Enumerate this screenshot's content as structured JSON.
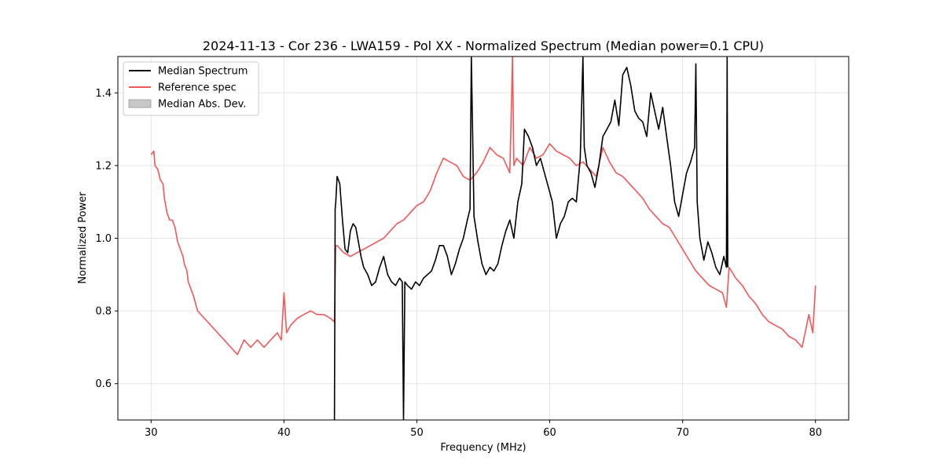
{
  "chart_data": {
    "type": "line",
    "title": "2024-11-13 - Cor 236 - LWA159 - Pol XX - Normalized Spectrum (Median power=0.1 CPU)",
    "xlabel": "Frequency (MHz)",
    "ylabel": "Normalized Power",
    "xlim": [
      27.5,
      82.5
    ],
    "ylim": [
      0.5,
      1.5
    ],
    "xticks": [
      30,
      40,
      50,
      60,
      70,
      80
    ],
    "yticks": [
      0.6,
      0.8,
      1.0,
      1.2,
      1.4
    ],
    "xtick_labels": [
      "30",
      "40",
      "50",
      "60",
      "70",
      "80"
    ],
    "ytick_labels": [
      "0.6",
      "0.8",
      "1.0",
      "1.2",
      "1.4"
    ],
    "grid": true,
    "legend_position": "top-left",
    "legend": [
      {
        "label": "Median Spectrum",
        "color": "#000000",
        "kind": "line"
      },
      {
        "label": "Reference spec",
        "color": "#f0585a",
        "kind": "line"
      },
      {
        "label": "Median Abs. Dev.",
        "color": "#c8c8c8",
        "kind": "patch"
      }
    ],
    "series": [
      {
        "name": "Reference spec",
        "color": "#f0585a",
        "x": [
          30.0,
          30.2,
          30.3,
          30.5,
          30.7,
          30.9,
          31.0,
          31.2,
          31.4,
          31.6,
          31.8,
          32.0,
          32.2,
          32.4,
          32.5,
          32.7,
          32.8,
          33.0,
          33.2,
          33.5,
          34.0,
          34.5,
          35.0,
          35.5,
          36.0,
          36.5,
          37.0,
          37.5,
          38.0,
          38.5,
          39.0,
          39.5,
          39.8,
          40.0,
          40.2,
          40.5,
          41.0,
          41.5,
          42.0,
          42.5,
          43.0,
          43.5,
          43.8,
          43.9,
          44.0,
          44.5,
          45.0,
          45.5,
          46.0,
          46.5,
          47.0,
          47.5,
          48.0,
          48.5,
          49.0,
          49.5,
          50.0,
          50.5,
          51.0,
          51.5,
          52.0,
          52.5,
          53.0,
          53.5,
          54.0,
          54.5,
          55.0,
          55.5,
          56.0,
          56.5,
          57.0,
          57.2,
          57.3,
          57.5,
          58.0,
          58.5,
          59.0,
          59.5,
          60.0,
          60.5,
          61.0,
          61.5,
          62.0,
          62.5,
          63.0,
          63.5,
          64.0,
          64.5,
          65.0,
          65.5,
          66.0,
          66.5,
          67.0,
          67.5,
          68.0,
          68.5,
          69.0,
          69.5,
          70.0,
          70.5,
          71.0,
          71.5,
          72.0,
          72.5,
          73.0,
          73.3,
          73.5,
          74.0,
          74.5,
          75.0,
          75.5,
          76.0,
          76.5,
          77.0,
          77.5,
          78.0,
          78.5,
          79.0,
          79.5,
          79.8,
          80.0
        ],
        "values": [
          1.23,
          1.24,
          1.2,
          1.19,
          1.16,
          1.15,
          1.11,
          1.07,
          1.05,
          1.05,
          1.03,
          0.99,
          0.97,
          0.95,
          0.93,
          0.91,
          0.88,
          0.86,
          0.84,
          0.8,
          0.78,
          0.76,
          0.74,
          0.72,
          0.7,
          0.68,
          0.72,
          0.7,
          0.72,
          0.7,
          0.72,
          0.74,
          0.72,
          0.85,
          0.74,
          0.76,
          0.78,
          0.79,
          0.8,
          0.79,
          0.79,
          0.78,
          0.77,
          0.98,
          0.98,
          0.96,
          0.95,
          0.96,
          0.97,
          0.98,
          0.99,
          1.0,
          1.02,
          1.04,
          1.05,
          1.07,
          1.09,
          1.1,
          1.13,
          1.18,
          1.22,
          1.21,
          1.2,
          1.17,
          1.16,
          1.18,
          1.21,
          1.25,
          1.23,
          1.22,
          1.18,
          1.5,
          1.2,
          1.22,
          1.2,
          1.25,
          1.22,
          1.23,
          1.26,
          1.24,
          1.23,
          1.22,
          1.2,
          1.21,
          1.19,
          1.17,
          1.25,
          1.21,
          1.18,
          1.17,
          1.15,
          1.13,
          1.11,
          1.08,
          1.06,
          1.04,
          1.03,
          1.0,
          0.97,
          0.94,
          0.91,
          0.89,
          0.87,
          0.86,
          0.85,
          0.81,
          0.92,
          0.89,
          0.87,
          0.84,
          0.82,
          0.79,
          0.77,
          0.76,
          0.75,
          0.73,
          0.72,
          0.7,
          0.79,
          0.74,
          0.87
        ]
      },
      {
        "name": "Median Spectrum",
        "color": "#000000",
        "x": [
          43.8,
          43.85,
          43.9,
          44.0,
          44.2,
          44.4,
          44.6,
          44.8,
          45.0,
          45.2,
          45.4,
          45.6,
          45.8,
          46.0,
          46.3,
          46.6,
          46.9,
          47.2,
          47.5,
          47.8,
          48.1,
          48.4,
          48.7,
          48.9,
          49.0,
          49.1,
          49.3,
          49.6,
          49.9,
          50.2,
          50.5,
          50.8,
          51.1,
          51.4,
          51.7,
          52.0,
          52.3,
          52.6,
          52.9,
          53.2,
          53.5,
          53.8,
          54.0,
          54.1,
          54.3,
          54.6,
          54.9,
          55.2,
          55.5,
          55.8,
          56.1,
          56.4,
          56.7,
          57.0,
          57.3,
          57.6,
          57.9,
          58.1,
          58.4,
          58.7,
          59.0,
          59.3,
          59.6,
          59.9,
          60.2,
          60.5,
          60.8,
          61.1,
          61.4,
          61.7,
          62.0,
          62.3,
          62.5,
          62.6,
          62.8,
          63.1,
          63.4,
          63.7,
          64.0,
          64.3,
          64.6,
          64.9,
          65.2,
          65.5,
          65.8,
          66.1,
          66.4,
          66.7,
          67.0,
          67.3,
          67.6,
          67.9,
          68.2,
          68.5,
          68.8,
          69.1,
          69.4,
          69.7,
          70.0,
          70.3,
          70.6,
          70.9,
          71.0,
          71.1,
          71.3,
          71.6,
          71.9,
          72.2,
          72.5,
          72.8,
          73.1,
          73.3,
          73.35,
          73.4
        ],
        "values": [
          0.5,
          1.08,
          1.1,
          1.17,
          1.15,
          1.05,
          0.97,
          0.96,
          1.02,
          1.04,
          1.03,
          0.99,
          0.95,
          0.92,
          0.9,
          0.87,
          0.88,
          0.92,
          0.95,
          0.9,
          0.88,
          0.87,
          0.89,
          0.88,
          0.5,
          0.88,
          0.87,
          0.86,
          0.88,
          0.87,
          0.89,
          0.9,
          0.91,
          0.94,
          0.98,
          0.98,
          0.95,
          0.9,
          0.93,
          0.97,
          1.0,
          1.05,
          1.08,
          1.5,
          1.06,
          0.99,
          0.93,
          0.9,
          0.92,
          0.91,
          0.93,
          0.98,
          1.02,
          1.05,
          1.0,
          1.1,
          1.15,
          1.3,
          1.28,
          1.25,
          1.2,
          1.22,
          1.18,
          1.14,
          1.1,
          1.0,
          1.04,
          1.06,
          1.1,
          1.11,
          1.1,
          1.22,
          1.5,
          1.25,
          1.2,
          1.18,
          1.14,
          1.2,
          1.28,
          1.3,
          1.32,
          1.38,
          1.31,
          1.45,
          1.47,
          1.42,
          1.35,
          1.33,
          1.32,
          1.28,
          1.4,
          1.35,
          1.3,
          1.36,
          1.28,
          1.2,
          1.1,
          1.06,
          1.12,
          1.18,
          1.21,
          1.25,
          1.48,
          1.1,
          1.0,
          0.94,
          0.99,
          0.96,
          0.92,
          0.9,
          0.95,
          0.92,
          1.5,
          0.92
        ]
      }
    ]
  }
}
